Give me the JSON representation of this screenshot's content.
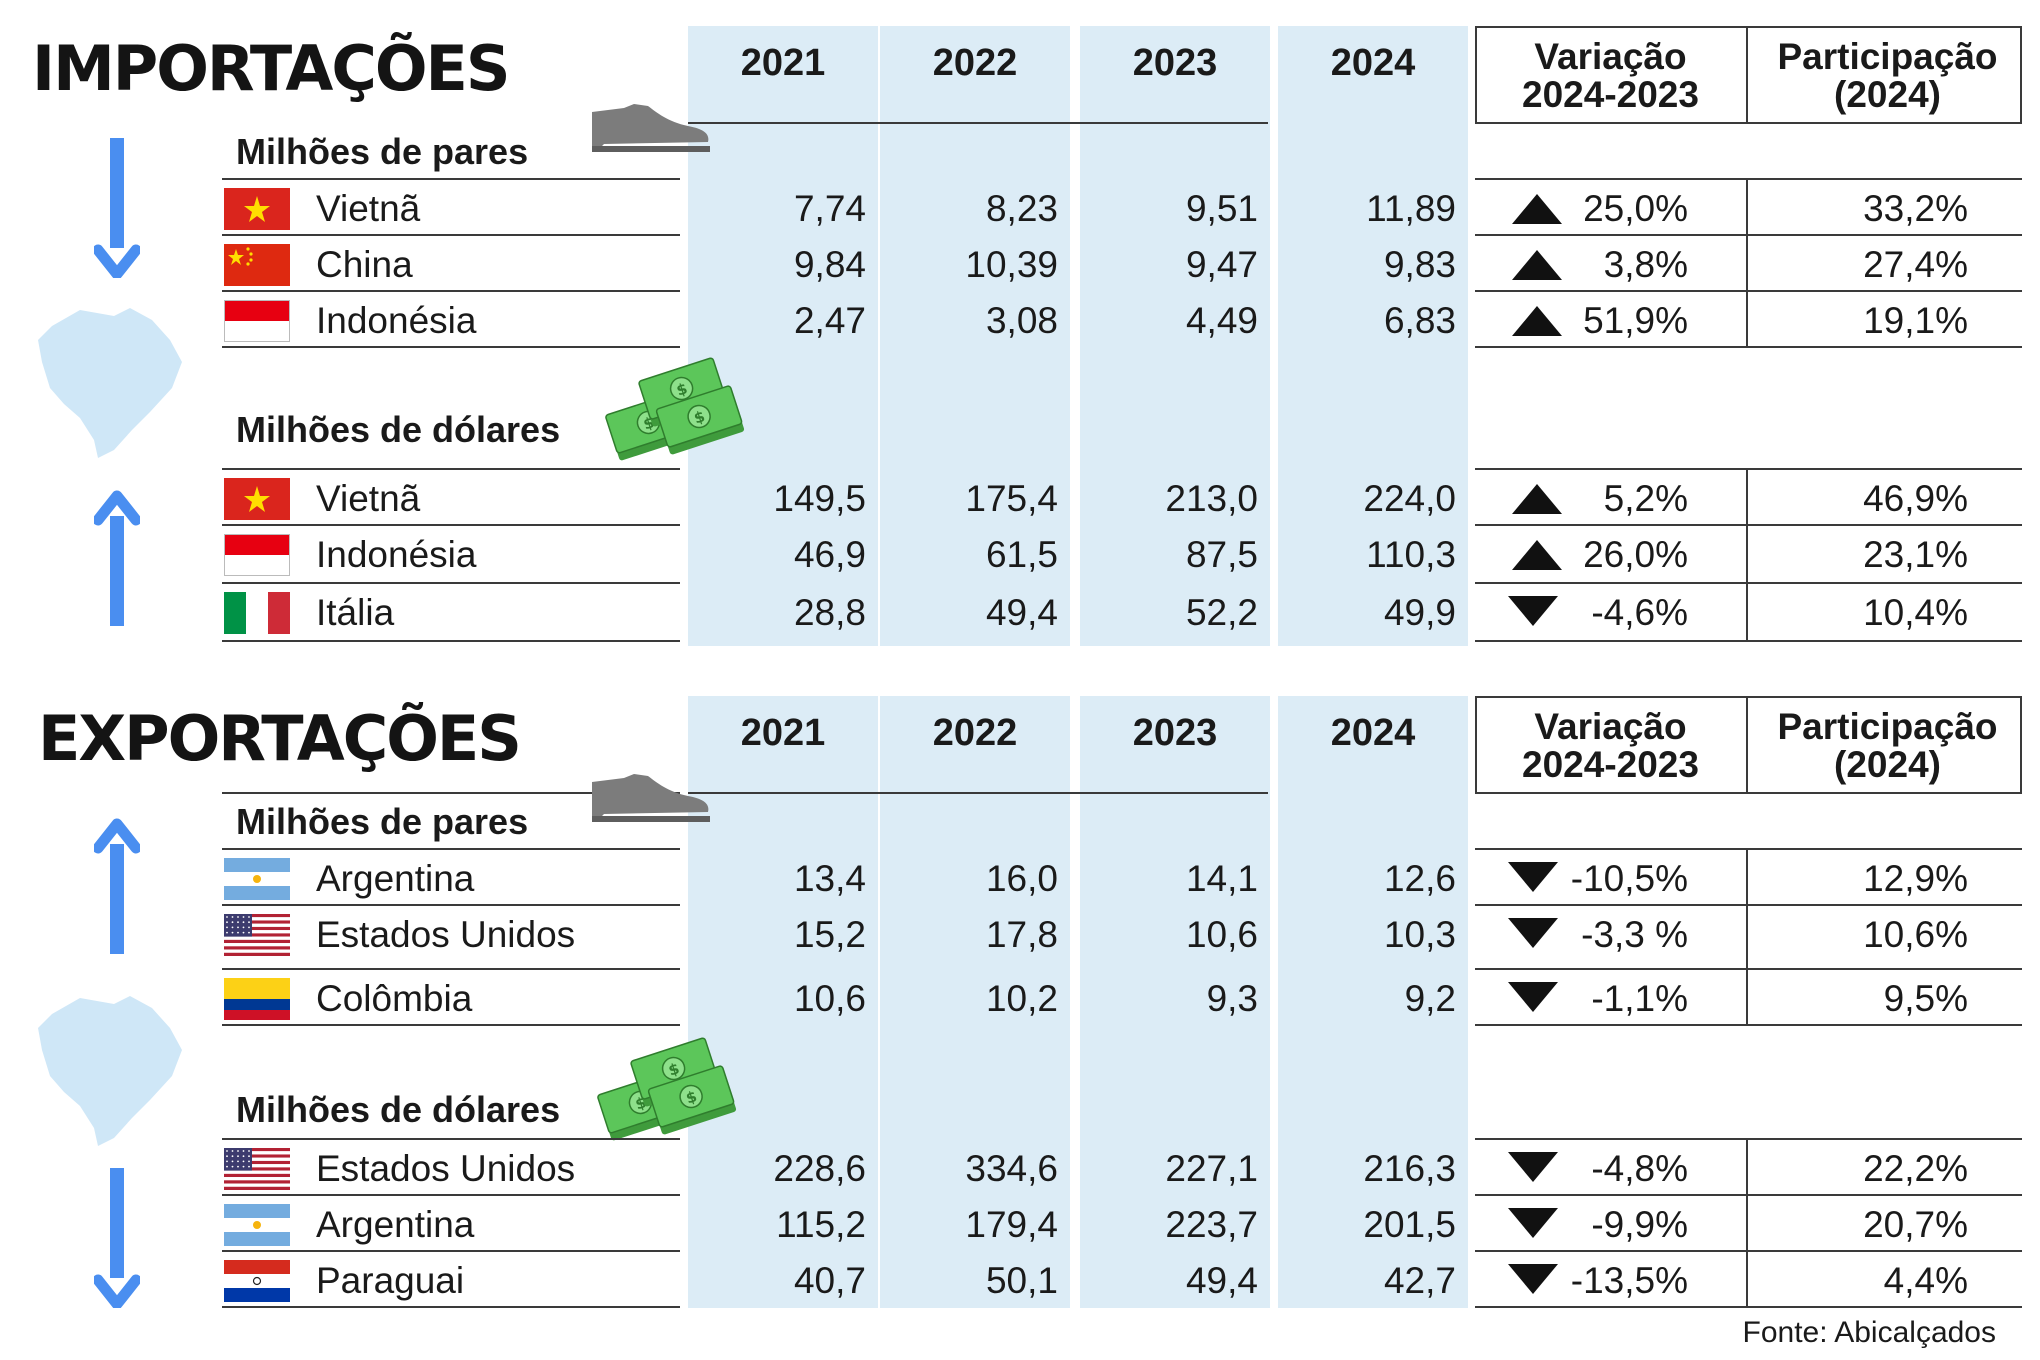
{
  "colors": {
    "column_bg": "#dcecf6",
    "arrow_blue": "#4a8ef0",
    "map_blue": "#cfe7f7",
    "money_green": "#5cc65a",
    "shoe_gray": "#7c7c7c"
  },
  "imports": {
    "title": "IMPORTAÇÕES",
    "years": [
      "2021",
      "2022",
      "2023",
      "2024"
    ],
    "variation_header": [
      "Variação",
      "2024-2023"
    ],
    "share_header": [
      "Participação",
      "(2024)"
    ],
    "pairs": {
      "unit": "Milhões de pares",
      "icon": "shoe-icon",
      "rows": [
        {
          "country": "Vietnã",
          "flag": "vietnam-flag-icon",
          "values": [
            "7,74",
            "8,23",
            "9,51",
            "11,89"
          ],
          "trend": "up",
          "variation": "25,0%",
          "share": "33,2%"
        },
        {
          "country": "China",
          "flag": "china-flag-icon",
          "values": [
            "9,84",
            "10,39",
            "9,47",
            "9,83"
          ],
          "trend": "up",
          "variation": "3,8%",
          "share": "27,4%"
        },
        {
          "country": "Indonésia",
          "flag": "indonesia-flag-icon",
          "values": [
            "2,47",
            "3,08",
            "4,49",
            "6,83"
          ],
          "trend": "up",
          "variation": "51,9%",
          "share": "19,1%"
        }
      ]
    },
    "dollars": {
      "unit": "Milhões de dólares",
      "icon": "money-icon",
      "rows": [
        {
          "country": "Vietnã",
          "flag": "vietnam-flag-icon",
          "values": [
            "149,5",
            "175,4",
            "213,0",
            "224,0"
          ],
          "trend": "up",
          "variation": "5,2%",
          "share": "46,9%"
        },
        {
          "country": "Indonésia",
          "flag": "indonesia-flag-icon",
          "values": [
            "46,9",
            "61,5",
            "87,5",
            "110,3"
          ],
          "trend": "up",
          "variation": "26,0%",
          "share": "23,1%"
        },
        {
          "country": "Itália",
          "flag": "italy-flag-icon",
          "values": [
            "28,8",
            "49,4",
            "52,2",
            "49,9"
          ],
          "trend": "down",
          "variation": "-4,6%",
          "share": "10,4%"
        }
      ]
    }
  },
  "exports": {
    "title": "EXPORTAÇÕES",
    "years": [
      "2021",
      "2022",
      "2023",
      "2024"
    ],
    "variation_header": [
      "Variação",
      "2024-2023"
    ],
    "share_header": [
      "Participação",
      "(2024)"
    ],
    "pairs": {
      "unit": "Milhões de pares",
      "icon": "shoe-icon",
      "rows": [
        {
          "country": "Argentina",
          "flag": "argentina-flag-icon",
          "values": [
            "13,4",
            "16,0",
            "14,1",
            "12,6"
          ],
          "trend": "down",
          "variation": "-10,5%",
          "share": "12,9%"
        },
        {
          "country": "Estados Unidos",
          "flag": "usa-flag-icon",
          "values": [
            "15,2",
            "17,8",
            "10,6",
            "10,3"
          ],
          "trend": "down",
          "variation": "-3,3 %",
          "share": "10,6%"
        },
        {
          "country": "Colômbia",
          "flag": "colombia-flag-icon",
          "values": [
            "10,6",
            "10,2",
            "9,3",
            "9,2"
          ],
          "trend": "down",
          "variation": "-1,1%",
          "share": "9,5%"
        }
      ]
    },
    "dollars": {
      "unit": "Milhões de dólares",
      "icon": "money-icon",
      "rows": [
        {
          "country": "Estados Unidos",
          "flag": "usa-flag-icon",
          "values": [
            "228,6",
            "334,6",
            "227,1",
            "216,3"
          ],
          "trend": "down",
          "variation": "-4,8%",
          "share": "22,2%"
        },
        {
          "country": "Argentina",
          "flag": "argentina-flag-icon",
          "values": [
            "115,2",
            "179,4",
            "223,7",
            "201,5"
          ],
          "trend": "down",
          "variation": "-9,9%",
          "share": "20,7%"
        },
        {
          "country": "Paraguai",
          "flag": "paraguay-flag-icon",
          "values": [
            "40,7",
            "50,1",
            "49,4",
            "42,7"
          ],
          "trend": "down",
          "variation": "-13,5%",
          "share": "4,4%"
        }
      ]
    }
  },
  "source": "Fonte: Abicalçados"
}
